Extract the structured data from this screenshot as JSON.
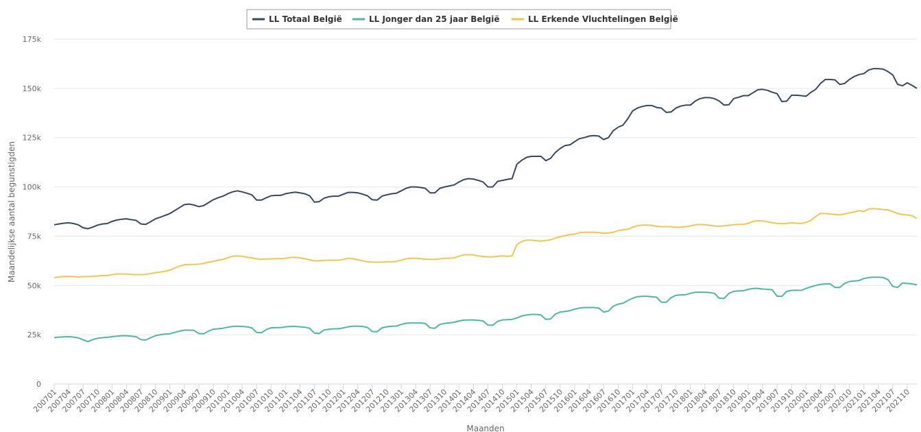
{
  "chart_data": {
    "type": "line",
    "y_label": "Maandelijkse aantal begunstigden",
    "x_label": "Maanden",
    "categories": [
      "200701",
      null,
      null,
      "200704",
      null,
      null,
      "200707",
      null,
      null,
      "200710",
      null,
      null,
      "200801",
      null,
      null,
      "200804",
      null,
      null,
      "200807",
      null,
      null,
      "200810",
      null,
      null,
      "200901",
      null,
      null,
      "200904",
      null,
      null,
      "200907",
      null,
      null,
      "200910",
      null,
      null,
      "201001",
      null,
      null,
      "201004",
      null,
      null,
      "201007",
      null,
      null,
      "201010",
      null,
      null,
      "201101",
      null,
      null,
      "201104",
      null,
      null,
      "201107",
      null,
      null,
      "201110",
      null,
      null,
      "201201",
      null,
      null,
      "201204",
      null,
      null,
      "201207",
      null,
      null,
      "201210",
      null,
      null,
      "201301",
      null,
      null,
      "201304",
      null,
      null,
      "201307",
      null,
      null,
      "201310",
      null,
      null,
      "201401",
      null,
      null,
      "201404",
      null,
      null,
      "201407",
      null,
      null,
      "201410",
      null,
      null,
      "201501",
      null,
      null,
      "201504",
      null,
      null,
      "201507",
      null,
      null,
      "201510",
      null,
      null,
      "201601",
      null,
      null,
      "201604",
      null,
      null,
      "201607",
      null,
      null,
      "201610",
      null,
      null,
      "201701",
      null,
      null,
      "201704",
      null,
      null,
      "201707",
      null,
      null,
      "201710",
      null,
      null,
      "201801",
      null,
      null,
      "201804",
      null,
      null,
      "201807",
      null,
      null,
      "201810",
      null,
      null,
      "201901",
      null,
      null,
      "201904",
      null,
      null,
      "201907",
      null,
      null,
      "201910",
      null,
      null,
      "202001",
      null,
      null,
      "202004",
      null,
      null,
      "202007",
      null,
      null,
      "202010",
      null,
      null,
      "202101",
      null,
      null,
      "202104",
      null,
      null,
      "202107",
      null,
      null,
      "202110",
      null,
      null
    ],
    "ylim": [
      0,
      175000
    ],
    "yticks": [
      0,
      {
        "value": 25000,
        "label": "25k"
      },
      {
        "value": 50000,
        "label": "50k"
      },
      {
        "value": 75000,
        "label": "75k"
      },
      {
        "value": 100000,
        "label": "100k"
      },
      {
        "value": 125000,
        "label": "125k"
      },
      {
        "value": 150000,
        "label": "150k"
      },
      {
        "value": 175000,
        "label": "175k"
      }
    ],
    "grid": true,
    "legend": "top",
    "series": [
      {
        "name": "LL Totaal België",
        "color": "#34495e",
        "values": [
          80800,
          81200,
          81600,
          81800,
          81400,
          80800,
          79300,
          78800,
          79600,
          80600,
          81200,
          81400,
          82500,
          83200,
          83600,
          83800,
          83400,
          83000,
          81200,
          81000,
          82300,
          83800,
          84600,
          85500,
          86500,
          88000,
          89500,
          91000,
          91300,
          90800,
          90000,
          90500,
          92000,
          93500,
          94500,
          95300,
          96500,
          97500,
          98000,
          97500,
          96800,
          96000,
          93300,
          93300,
          94500,
          95500,
          95700,
          95700,
          96500,
          97000,
          97300,
          97000,
          96500,
          95500,
          92300,
          92500,
          94300,
          95000,
          95300,
          95300,
          96300,
          97200,
          97200,
          97000,
          96300,
          95500,
          93500,
          93300,
          95300,
          96000,
          96500,
          96800,
          98000,
          99300,
          100000,
          100000,
          99700,
          99300,
          97000,
          97000,
          99300,
          100000,
          100500,
          101000,
          102500,
          103700,
          104200,
          104000,
          103300,
          102500,
          100000,
          100000,
          102800,
          103300,
          103800,
          104200,
          111500,
          113500,
          115000,
          115500,
          115500,
          115500,
          113300,
          114500,
          117500,
          119500,
          121000,
          121300,
          123000,
          124500,
          125000,
          125800,
          126000,
          125800,
          124000,
          125000,
          128500,
          130300,
          131300,
          134500,
          138500,
          140000,
          140800,
          141300,
          141300,
          140300,
          140000,
          137800,
          138000,
          140000,
          141000,
          141500,
          141500,
          143500,
          144800,
          145300,
          145300,
          144800,
          143500,
          141500,
          141700,
          144800,
          145500,
          146300,
          146300,
          147800,
          149300,
          149500,
          149000,
          148000,
          147300,
          143300,
          143500,
          146500,
          146500,
          146300,
          146000,
          148000,
          149500,
          152500,
          154500,
          154500,
          154300,
          152000,
          152500,
          154500,
          156000,
          157000,
          157500,
          159300,
          160000,
          160000,
          159800,
          158500,
          156800,
          152000,
          151300,
          152800,
          151500,
          150000
        ]
      },
      {
        "name": "LL Jonger dan 25 jaar België",
        "color": "#4db89e",
        "values": [
          23500,
          23800,
          23900,
          24000,
          23800,
          23400,
          22400,
          21500,
          22500,
          23200,
          23500,
          23700,
          24000,
          24300,
          24500,
          24500,
          24300,
          24000,
          22500,
          22300,
          23500,
          24500,
          25000,
          25300,
          25500,
          26200,
          26800,
          27300,
          27300,
          27200,
          25600,
          25500,
          26800,
          27800,
          28000,
          28300,
          28800,
          29200,
          29300,
          29200,
          29000,
          28500,
          26200,
          26000,
          27600,
          28500,
          28600,
          28600,
          29000,
          29200,
          29200,
          29000,
          28800,
          28300,
          25800,
          25600,
          27400,
          27800,
          28000,
          28000,
          28500,
          29000,
          29300,
          29300,
          29200,
          28700,
          26600,
          26500,
          28500,
          29000,
          29300,
          29400,
          30200,
          30800,
          31000,
          31000,
          31000,
          30700,
          28500,
          28300,
          30200,
          30800,
          31000,
          31300,
          32000,
          32400,
          32500,
          32500,
          32300,
          32000,
          29800,
          29800,
          31800,
          32500,
          32600,
          32800,
          33500,
          34500,
          35000,
          35300,
          35300,
          35000,
          32800,
          33000,
          35500,
          36500,
          36800,
          37200,
          38000,
          38500,
          38800,
          38800,
          38800,
          38500,
          36500,
          37000,
          39500,
          40500,
          41000,
          42300,
          43500,
          44300,
          44500,
          44500,
          44300,
          44000,
          41500,
          41500,
          43800,
          45000,
          45200,
          45300,
          46000,
          46500,
          46600,
          46500,
          46400,
          46000,
          43500,
          43400,
          46000,
          47000,
          47200,
          47300,
          48000,
          48500,
          48500,
          48200,
          48000,
          47800,
          44500,
          44500,
          47000,
          47500,
          47600,
          47500,
          48500,
          49300,
          50000,
          50500,
          50800,
          50800,
          49000,
          49000,
          51000,
          52000,
          52300,
          52500,
          53500,
          54000,
          54200,
          54200,
          54000,
          53000,
          49500,
          49000,
          51200,
          51000,
          50800,
          50300
        ]
      },
      {
        "name": "LL Erkende Vluchtelingen België",
        "color": "#f0c74a",
        "values": [
          54000,
          54300,
          54500,
          54600,
          54500,
          54300,
          54500,
          54500,
          54600,
          54800,
          55000,
          55000,
          55500,
          55800,
          55800,
          55800,
          55600,
          55500,
          55500,
          55600,
          56000,
          56500,
          56800,
          57200,
          57800,
          58800,
          59800,
          60500,
          60600,
          60600,
          60800,
          61200,
          61800,
          62200,
          62800,
          63200,
          64000,
          64800,
          65000,
          64800,
          64300,
          64000,
          63500,
          63300,
          63400,
          63500,
          63600,
          63600,
          63800,
          64200,
          64300,
          64000,
          63500,
          63000,
          62500,
          62500,
          62700,
          62800,
          62800,
          62800,
          63200,
          63800,
          63500,
          63000,
          62500,
          62000,
          61800,
          61800,
          61800,
          62000,
          62000,
          62200,
          62800,
          63500,
          63800,
          63800,
          63600,
          63300,
          63200,
          63300,
          63500,
          63800,
          63800,
          64000,
          64800,
          65500,
          65600,
          65500,
          65000,
          64700,
          64500,
          64500,
          64800,
          65000,
          64800,
          65000,
          70800,
          72300,
          73000,
          73000,
          72700,
          72500,
          72800,
          73200,
          74000,
          74800,
          75300,
          75800,
          76000,
          76800,
          77000,
          77000,
          77000,
          76800,
          76500,
          76600,
          77000,
          77800,
          78200,
          78500,
          79500,
          80300,
          80600,
          80600,
          80500,
          80000,
          79800,
          79800,
          79800,
          79500,
          79600,
          79800,
          80200,
          80800,
          81000,
          80800,
          80500,
          80200,
          80000,
          80200,
          80500,
          80800,
          81000,
          81000,
          81500,
          82500,
          82800,
          82700,
          82300,
          81800,
          81500,
          81300,
          81500,
          81800,
          81600,
          81500,
          82000,
          83000,
          85000,
          86500,
          86500,
          86200,
          86000,
          85800,
          86300,
          86800,
          87300,
          88000,
          87500,
          88800,
          89000,
          88800,
          88500,
          88300,
          87500,
          86500,
          86000,
          85800,
          85300,
          84000
        ]
      }
    ]
  }
}
